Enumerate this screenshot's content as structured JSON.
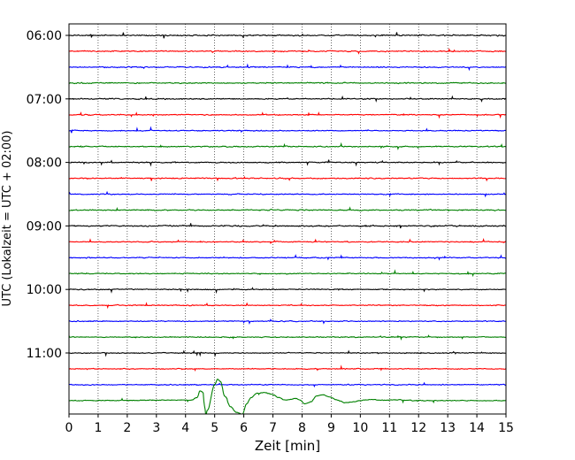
{
  "chart_data": {
    "type": "line",
    "title": "",
    "xlabel": "Zeit  [min]",
    "ylabel": "UTC (Lokalzeit = UTC + 02:00)",
    "xlim": [
      0,
      15
    ],
    "x_ticks": [
      "0",
      "1",
      "2",
      "3",
      "4",
      "5",
      "6",
      "7",
      "8",
      "9",
      "10",
      "11",
      "12",
      "13",
      "14",
      "15"
    ],
    "y_ticks": [
      {
        "label": "06:00",
        "trace": 0
      },
      {
        "label": "07:00",
        "trace": 4
      },
      {
        "label": "08:00",
        "trace": 8
      },
      {
        "label": "09:00",
        "trace": 12
      },
      {
        "label": "10:00",
        "trace": 16
      },
      {
        "label": "11:00",
        "trace": 20
      }
    ],
    "grid": "vertical-dotted",
    "trace_interval_min": 15,
    "trace_colors": [
      "#000000",
      "#ff0000",
      "#0000ff",
      "#008000"
    ],
    "series": [
      {
        "start": "06:00",
        "color": "#000000",
        "amplitude": 0.09
      },
      {
        "start": "06:15",
        "color": "#ff0000",
        "amplitude": 0.08
      },
      {
        "start": "06:30",
        "color": "#0000ff",
        "amplitude": 0.08
      },
      {
        "start": "06:45",
        "color": "#008000",
        "amplitude": 0.08
      },
      {
        "start": "07:00",
        "color": "#000000",
        "amplitude": 0.08
      },
      {
        "start": "07:15",
        "color": "#ff0000",
        "amplitude": 0.07
      },
      {
        "start": "07:30",
        "color": "#0000ff",
        "amplitude": 0.07
      },
      {
        "start": "07:45",
        "color": "#008000",
        "amplitude": 0.08
      },
      {
        "start": "08:00",
        "color": "#000000",
        "amplitude": 0.08
      },
      {
        "start": "08:15",
        "color": "#ff0000",
        "amplitude": 0.08
      },
      {
        "start": "08:30",
        "color": "#0000ff",
        "amplitude": 0.07
      },
      {
        "start": "08:45",
        "color": "#008000",
        "amplitude": 0.08
      },
      {
        "start": "09:00",
        "color": "#000000",
        "amplitude": 0.09
      },
      {
        "start": "09:15",
        "color": "#ff0000",
        "amplitude": 0.07
      },
      {
        "start": "09:30",
        "color": "#0000ff",
        "amplitude": 0.07
      },
      {
        "start": "09:45",
        "color": "#008000",
        "amplitude": 0.07
      },
      {
        "start": "10:00",
        "color": "#000000",
        "amplitude": 0.07
      },
      {
        "start": "10:15",
        "color": "#ff0000",
        "amplitude": 0.07
      },
      {
        "start": "10:30",
        "color": "#0000ff",
        "amplitude": 0.07
      },
      {
        "start": "10:45",
        "color": "#008000",
        "amplitude": 0.07
      },
      {
        "start": "11:00",
        "color": "#000000",
        "amplitude": 0.07
      },
      {
        "start": "11:15",
        "color": "#ff0000",
        "amplitude": 0.07
      },
      {
        "start": "11:30",
        "color": "#0000ff",
        "amplitude": 0.07
      },
      {
        "start": "11:45",
        "color": "#008000",
        "amplitude": 0.06,
        "event": {
          "x": [
            0,
            4.2,
            4.4,
            4.5,
            4.6,
            4.65,
            4.7,
            4.75,
            5.0,
            5.1,
            5.2,
            5.35,
            5.55,
            5.75,
            5.95,
            6.1,
            6.25,
            6.45,
            6.7,
            6.95,
            7.2,
            7.4,
            7.6,
            7.75,
            7.9,
            8.1,
            8.3,
            8.5,
            8.7,
            8.95,
            9.2,
            9.5,
            9.8,
            10.1,
            10.4,
            10.8,
            11.2,
            12.0,
            13.0,
            14.0,
            15.0
          ],
          "y": [
            0,
            0.05,
            0.3,
            0.95,
            0.8,
            -0.5,
            -1.4,
            -0.9,
            1.5,
            2.0,
            1.8,
            0.4,
            -0.6,
            -1.1,
            -1.3,
            -0.3,
            0.3,
            0.7,
            0.75,
            0.6,
            0.3,
            0.05,
            0.1,
            0.2,
            0.1,
            -0.3,
            -0.1,
            0.45,
            0.55,
            0.35,
            0.05,
            -0.2,
            -0.1,
            0.05,
            0.1,
            0.03,
            0.08,
            0.0,
            0.0,
            0.0,
            0.0
          ]
        }
      }
    ]
  }
}
